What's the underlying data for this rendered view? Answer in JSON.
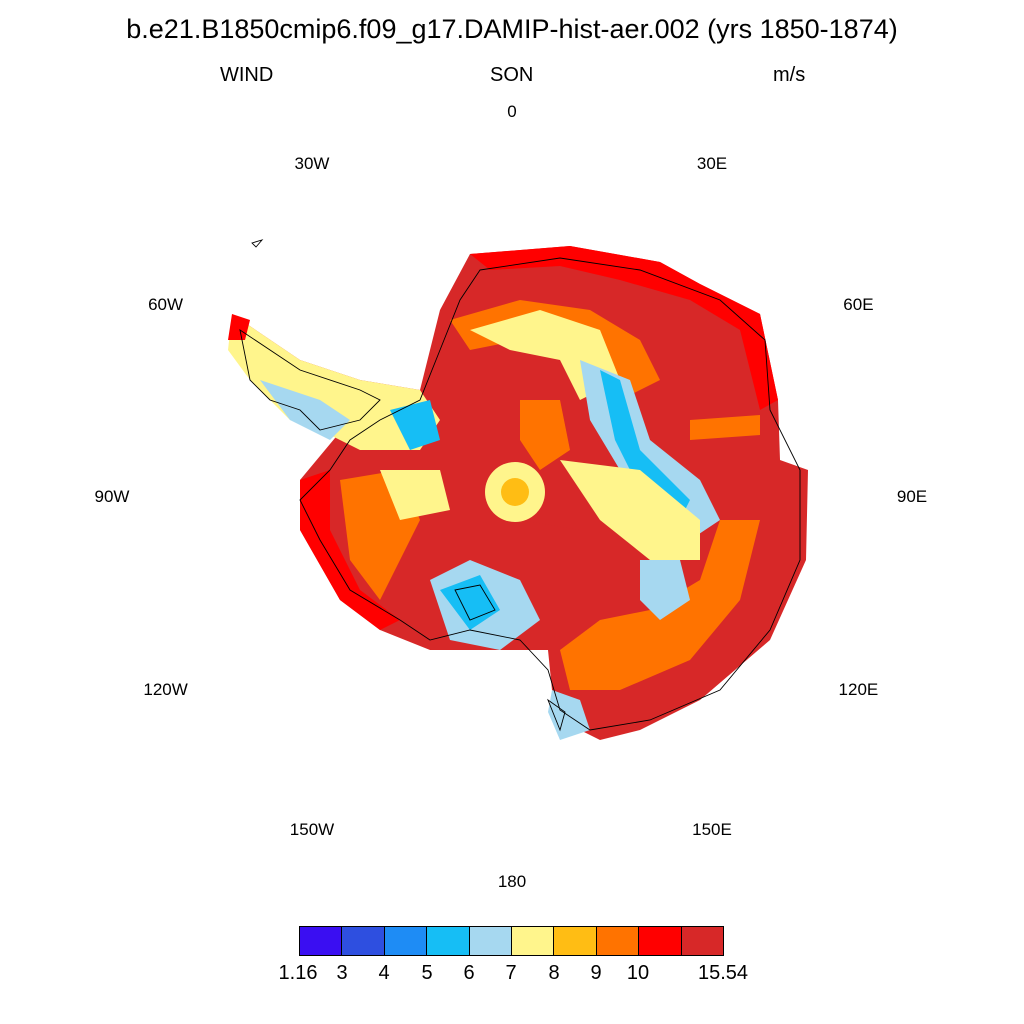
{
  "title": "b.e21.B1850cmip6.f09_g17.DAMIP-hist-aer.002 (yrs 1850-1874)",
  "left_string": "WIND",
  "center_string": "SON",
  "right_string": "m/s",
  "longitude_labels": [
    "0",
    "30E",
    "60E",
    "90E",
    "120E",
    "150E",
    "180",
    "150W",
    "120W",
    "90W",
    "60W",
    "30W"
  ],
  "colorbar": {
    "colors": [
      "#3a0ef2",
      "#2e4fe0",
      "#1e8cf5",
      "#16bef5",
      "#a6d8f0",
      "#fff58c",
      "#ffbd14",
      "#ff7300",
      "#ff0000",
      "#d72828"
    ],
    "labels": [
      "1.16",
      "3",
      "4",
      "5",
      "6",
      "7",
      "8",
      "9",
      "10",
      "15.54"
    ]
  }
}
